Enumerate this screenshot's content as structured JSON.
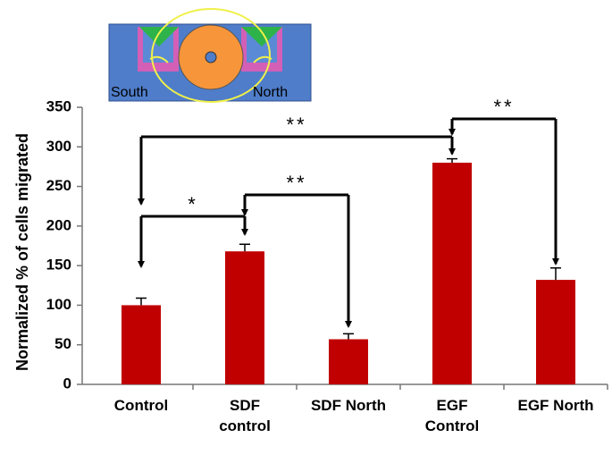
{
  "chart_data": {
    "type": "bar",
    "y_label": "Normalized % of cells migrated",
    "categories": [
      "Control",
      "SDF\ncontrol",
      "SDF North",
      "EGF\nControl",
      "EGF North"
    ],
    "values": [
      100,
      168,
      57,
      280,
      132
    ],
    "errors": [
      9,
      9,
      7,
      5,
      15
    ],
    "color": "#c00000",
    "ylim": [
      0,
      350
    ],
    "yticks": [
      0,
      50,
      100,
      150,
      200,
      250,
      300,
      350
    ],
    "annotations": [
      {
        "from": 0,
        "to": 1,
        "label": "*"
      },
      {
        "from": 0,
        "to": 3,
        "label": "**"
      },
      {
        "from": 1,
        "to": 2,
        "label": "**"
      },
      {
        "from": 3,
        "to": 4,
        "label": "**"
      }
    ]
  },
  "inset": {
    "labels": [
      "South",
      "North"
    ]
  }
}
